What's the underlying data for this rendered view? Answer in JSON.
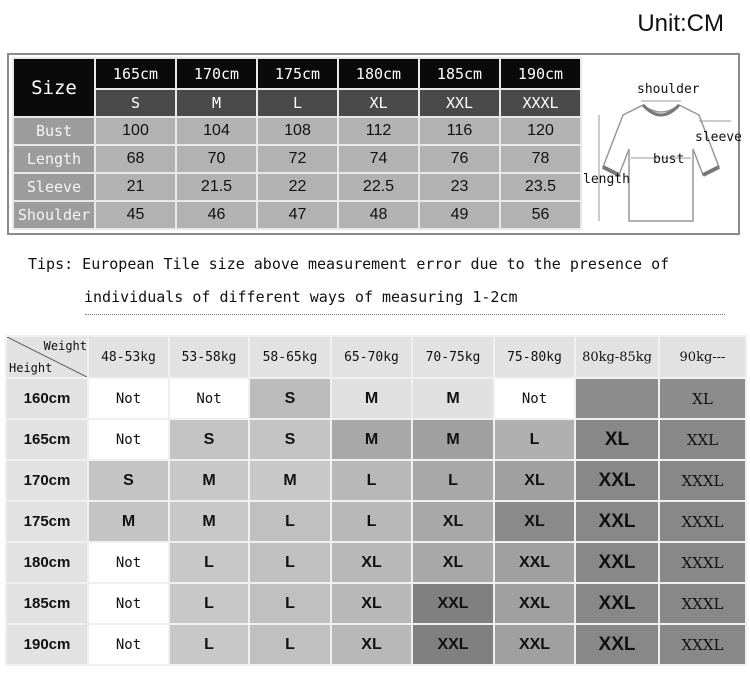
{
  "unit_label": "Unit:CM",
  "size_chart": {
    "corner_label": "Size",
    "heights": [
      "165cm",
      "170cm",
      "175cm",
      "180cm",
      "185cm",
      "190cm"
    ],
    "sizes": [
      "S",
      "M",
      "L",
      "XL",
      "XXL",
      "XXXL"
    ],
    "rows": [
      {
        "label": "Bust",
        "values": [
          "100",
          "104",
          "108",
          "112",
          "116",
          "120"
        ]
      },
      {
        "label": "Length",
        "values": [
          "68",
          "70",
          "72",
          "74",
          "76",
          "78"
        ]
      },
      {
        "label": "Sleeve",
        "values": [
          "21",
          "21.5",
          "22",
          "22.5",
          "23",
          "23.5"
        ]
      },
      {
        "label": "Shoulder",
        "values": [
          "45",
          "46",
          "47",
          "48",
          "49",
          "56"
        ]
      }
    ],
    "diagram_labels": {
      "shoulder": "shoulder",
      "sleeve": "sleeve",
      "bust": "bust",
      "length": "length"
    }
  },
  "tips": {
    "line1": "Tips: European Tile size above measurement error due to the presence of",
    "line2": "individuals of different ways of measuring 1-2cm"
  },
  "fit_chart": {
    "corner_weight": "Weight",
    "corner_height": "Height",
    "weights": [
      "48-53kg",
      "53-58kg",
      "58-65kg",
      "65-70kg",
      "70-75kg",
      "75-80kg",
      "80kg-85kg",
      "90kg---"
    ],
    "rows": [
      {
        "height": "160cm",
        "cells": [
          [
            "Not",
            "#ffffff"
          ],
          [
            "Not",
            "#ffffff"
          ],
          [
            "S",
            "#bcbcbc"
          ],
          [
            "M",
            "#e0e0e0"
          ],
          [
            "M",
            "#e0e0e0"
          ],
          [
            "Not",
            "#ffffff"
          ],
          [
            "",
            "#8c8c8c"
          ],
          [
            "XL",
            "#8c8c8c"
          ]
        ]
      },
      {
        "height": "165cm",
        "cells": [
          [
            "Not",
            "#ffffff"
          ],
          [
            "S",
            "#c4c4c4"
          ],
          [
            "S",
            "#c4c4c4"
          ],
          [
            "M",
            "#a8a8a8"
          ],
          [
            "M",
            "#a0a0a0"
          ],
          [
            "L",
            "#b0b0b0"
          ],
          [
            "XL",
            "#888888"
          ],
          [
            "XXL",
            "#888888"
          ]
        ]
      },
      {
        "height": "170cm",
        "cells": [
          [
            "S",
            "#c4c4c4"
          ],
          [
            "M",
            "#c8c8c8"
          ],
          [
            "M",
            "#c8c8c8"
          ],
          [
            "L",
            "#b8b8b8"
          ],
          [
            "L",
            "#a8a8a8"
          ],
          [
            "XL",
            "#a0a0a0"
          ],
          [
            "XXL",
            "#888888"
          ],
          [
            "XXXL",
            "#888888"
          ]
        ]
      },
      {
        "height": "175cm",
        "cells": [
          [
            "M",
            "#c4c4c4"
          ],
          [
            "M",
            "#c8c8c8"
          ],
          [
            "L",
            "#c0c0c0"
          ],
          [
            "L",
            "#b8b8b8"
          ],
          [
            "XL",
            "#a8a8a8"
          ],
          [
            "XL",
            "#8a8a8a"
          ],
          [
            "XXL",
            "#888888"
          ],
          [
            "XXXL",
            "#888888"
          ]
        ]
      },
      {
        "height": "180cm",
        "cells": [
          [
            "Not",
            "#ffffff"
          ],
          [
            "L",
            "#c8c8c8"
          ],
          [
            "L",
            "#c0c0c0"
          ],
          [
            "XL",
            "#b8b8b8"
          ],
          [
            "XL",
            "#a8a8a8"
          ],
          [
            "XXL",
            "#a0a0a0"
          ],
          [
            "XXL",
            "#888888"
          ],
          [
            "XXXL",
            "#888888"
          ]
        ]
      },
      {
        "height": "185cm",
        "cells": [
          [
            "Not",
            "#ffffff"
          ],
          [
            "L",
            "#c8c8c8"
          ],
          [
            "L",
            "#c0c0c0"
          ],
          [
            "XL",
            "#b8b8b8"
          ],
          [
            "XXL",
            "#808080"
          ],
          [
            "XXL",
            "#a0a0a0"
          ],
          [
            "XXL",
            "#888888"
          ],
          [
            "XXXL",
            "#888888"
          ]
        ]
      },
      {
        "height": "190cm",
        "cells": [
          [
            "Not",
            "#ffffff"
          ],
          [
            "L",
            "#c8c8c8"
          ],
          [
            "L",
            "#c0c0c0"
          ],
          [
            "XL",
            "#b8b8b8"
          ],
          [
            "XXL",
            "#808080"
          ],
          [
            "XXL",
            "#a0a0a0"
          ],
          [
            "XXL",
            "#888888"
          ],
          [
            "XXXL",
            "#888888"
          ]
        ]
      }
    ]
  }
}
